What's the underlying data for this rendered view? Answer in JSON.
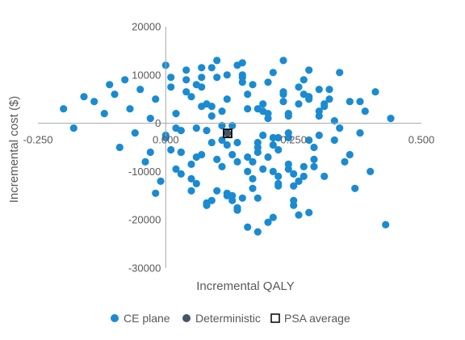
{
  "chart_data": {
    "type": "scatter",
    "title": "",
    "xlabel": "Incremental QALY",
    "ylabel": "Incremental cost ($)",
    "xlim": [
      -0.25,
      0.5
    ],
    "ylim": [
      -30000,
      20000
    ],
    "x_ticks": [
      -0.25,
      0.0,
      0.25,
      0.5
    ],
    "x_tick_labels": [
      "-0.250",
      "0.000",
      "0.250",
      "0.500"
    ],
    "y_ticks": [
      -30000,
      -20000,
      -10000,
      0,
      10000,
      20000
    ],
    "y_tick_labels": [
      "-30000",
      "-20000",
      "-10000",
      "0",
      "10000",
      "20000"
    ],
    "grid": false,
    "legend_position": "bottom",
    "colors": {
      "ce_plane": "#1b8bd1",
      "deterministic": "#44546a",
      "psa_average": "#000000",
      "axis": "#a6a6a6",
      "text": "#595959"
    },
    "series": [
      {
        "name": "CE plane",
        "marker": "circle",
        "x": [
          -0.2,
          -0.18,
          -0.16,
          -0.14,
          -0.12,
          -0.11,
          -0.1,
          -0.09,
          -0.08,
          -0.07,
          -0.06,
          -0.05,
          -0.04,
          -0.03,
          -0.02,
          -0.01,
          0.0,
          0.01,
          0.02,
          0.03,
          0.04,
          0.05,
          0.06,
          0.07,
          0.08,
          0.09,
          0.1,
          0.11,
          0.12,
          0.13,
          0.14,
          0.15,
          0.16,
          0.17,
          0.18,
          0.19,
          0.2,
          0.21,
          0.22,
          0.23,
          0.24,
          0.25,
          0.26,
          0.27,
          0.28,
          0.29,
          0.3,
          0.31,
          0.32,
          0.33,
          0.34,
          0.35,
          0.36,
          0.37,
          0.38,
          0.39,
          0.4,
          0.41,
          0.43,
          0.44,
          -0.03,
          0.0,
          0.02,
          0.04,
          0.06,
          0.08,
          0.1,
          0.12,
          0.14,
          0.16,
          0.18,
          0.2,
          0.22,
          0.24,
          0.26,
          0.28,
          0.3,
          -0.02,
          0.01,
          0.03,
          0.05,
          0.07,
          0.09,
          0.11,
          0.13,
          0.15,
          0.17,
          0.19,
          0.21,
          0.23,
          0.25,
          0.27,
          0.29,
          0.31,
          0.0,
          0.03,
          0.06,
          0.09,
          0.12,
          0.15,
          0.18,
          0.21,
          0.24,
          0.27,
          0.3,
          0.02,
          0.05,
          0.08,
          0.11,
          0.14,
          0.17,
          0.2,
          0.23,
          0.26,
          0.04,
          0.07,
          0.1,
          0.13,
          0.16,
          0.19,
          0.22,
          0.25,
          0.28,
          0.06,
          0.09,
          0.12,
          0.15,
          0.18,
          0.21,
          0.24,
          0.1,
          0.14,
          0.18,
          0.22,
          0.26,
          0.08,
          0.12,
          0.16,
          0.2,
          0.24,
          0.28,
          0.05,
          0.11,
          0.17,
          0.23,
          0.29,
          0.07,
          0.13,
          0.19,
          0.25,
          0.31,
          0.03,
          0.09,
          0.15,
          0.21,
          0.27,
          0.33,
          0.01,
          0.07,
          0.14,
          0.2,
          0.26,
          0.32,
          0.36,
          0.12,
          0.18,
          0.24,
          0.3,
          0.34,
          0.38,
          0.16,
          0.22,
          0.28
        ],
        "y": [
          3000,
          -1000,
          5500,
          4500,
          2000,
          8000,
          6000,
          -5000,
          9000,
          3000,
          -2000,
          7000,
          -8000,
          1000,
          5000,
          -12000,
          -3000,
          9500,
          2000,
          -6000,
          11000,
          -14000,
          -1000,
          7500,
          -17000,
          3500,
          13000,
          -9000,
          5000,
          -15000,
          -4000,
          12500,
          -10000,
          8000,
          -22500,
          2500,
          -7000,
          10500,
          -13000,
          6000,
          -3000,
          -16000,
          4000,
          9000,
          -18500,
          -5000,
          1500,
          -11000,
          7000,
          -3500,
          10500,
          -8000,
          4500,
          -13500,
          -2000,
          2500,
          -10000,
          6500,
          -21000,
          1000,
          -6000,
          12000,
          -9500,
          6500,
          -12500,
          4000,
          -7500,
          10000,
          -17500,
          3000,
          -15500,
          8500,
          -5500,
          1500,
          -19000,
          5500,
          -2500,
          -14500,
          7500,
          -1500,
          -8500,
          11500,
          -16000,
          2500,
          -6500,
          9500,
          -11500,
          4000,
          -4500,
          13000,
          -13000,
          6000,
          -9000,
          3500,
          -2500,
          -10500,
          8000,
          -4000,
          -15000,
          10000,
          -6000,
          -19500,
          2000,
          -11000,
          7000,
          -1000,
          5500,
          -16500,
          -3500,
          12000,
          -8000,
          -20500,
          4500,
          -12000,
          9000,
          -6500,
          -14000,
          -500,
          6000,
          -9500,
          -3000,
          -17000,
          11000,
          -7000,
          1500,
          -14500,
          8500,
          -5000,
          -10000,
          -2000,
          9500,
          -18000,
          3000,
          -12500,
          7500,
          -1500,
          -4500,
          -21500,
          2000,
          -8500,
          5000,
          -11500,
          -500,
          -13500,
          6500,
          -7500,
          9500,
          -16000,
          -2500,
          -10500,
          4000,
          -6000,
          11500,
          -15500,
          -3000,
          -9000,
          500,
          -5500,
          3500,
          -8000,
          1000,
          -12000,
          5000,
          -6500,
          -2000,
          -4000,
          -9500,
          2500,
          -1000,
          4500,
          -7000,
          -11000,
          -3500
        ],
        "note_values": []
      },
      {
        "name": "Deterministic",
        "marker": "circle",
        "x": [
          0.121
        ],
        "y": [
          -2100
        ]
      },
      {
        "name": "PSA average",
        "marker": "square",
        "x": [
          0.121
        ],
        "y": [
          -2100
        ]
      }
    ]
  }
}
